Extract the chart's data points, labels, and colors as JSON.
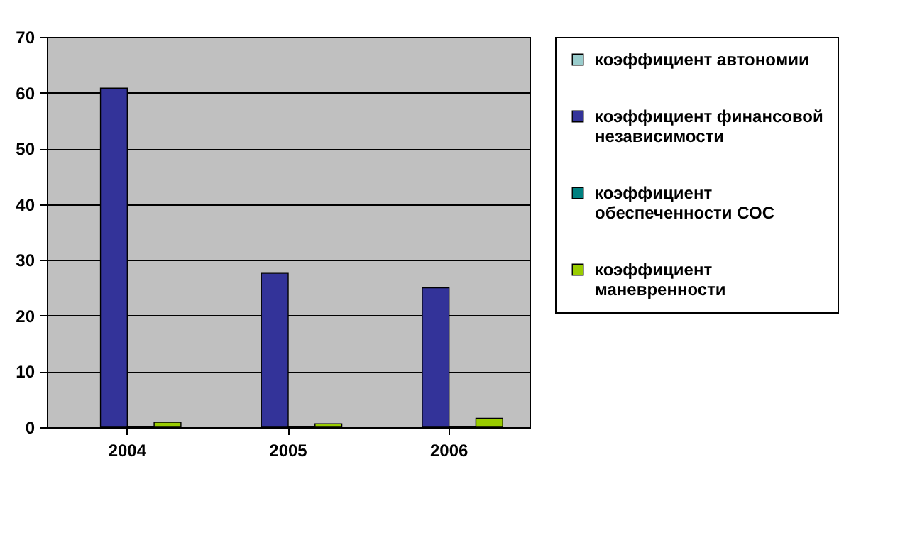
{
  "chart_data": {
    "type": "bar",
    "categories": [
      "2004",
      "2005",
      "2006"
    ],
    "series": [
      {
        "name": "коэффициент автономии",
        "color": "#99cccc",
        "values": [
          null,
          null,
          null
        ]
      },
      {
        "name": "коэффициент финансовой независимости",
        "color": "#333399",
        "values": [
          60.8,
          27.6,
          25
        ]
      },
      {
        "name": "коэффициент обеспеченности СОС",
        "color": "#008080",
        "values": [
          0.1,
          0.1,
          0.1
        ]
      },
      {
        "name": "коэффициент маневренности",
        "color": "#99cc00",
        "values": [
          0.9,
          0.6,
          1.6
        ]
      }
    ],
    "ylim": [
      0,
      70
    ],
    "yticks": [
      0,
      10,
      20,
      30,
      40,
      50,
      60,
      70
    ],
    "grid": "y",
    "legend": "right"
  }
}
